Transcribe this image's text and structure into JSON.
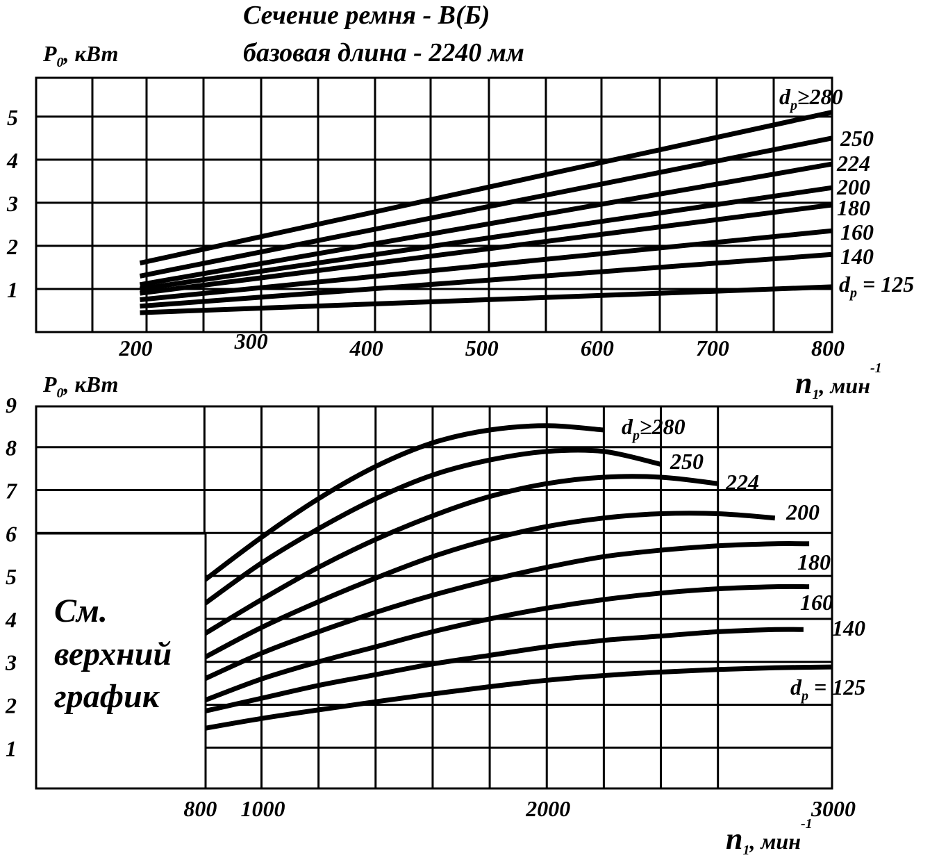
{
  "title": {
    "line1": "Сечение ремня - В(Б)",
    "line2": "базовая длина - 2240 мм"
  },
  "axis_labels": {
    "p_main": "P",
    "p_sub": "0",
    "p_unit": ", кВт",
    "n_main": "n",
    "n_sub": "1",
    "n_unit": ", мин",
    "n_sup": "-1"
  },
  "note": {
    "line1": "См.",
    "line2": "верхний",
    "line3": "график"
  },
  "chart_data": [
    {
      "type": "line",
      "x_ticks": [
        "200",
        "300",
        "400",
        "500",
        "600",
        "700",
        "800"
      ],
      "y_ticks": [
        "1",
        "2",
        "3",
        "4",
        "5"
      ],
      "xlim": [
        110,
        800
      ],
      "ylim": [
        0,
        5.9
      ],
      "grid": true,
      "series": [
        {
          "name": "dp ≥ 280",
          "x": [
            200,
            800
          ],
          "y": [
            1.6,
            5.1
          ],
          "label_main": "d",
          "label_sub": "p",
          "label_rest": "≥280"
        },
        {
          "name": "250",
          "x": [
            200,
            800
          ],
          "y": [
            1.3,
            4.5
          ],
          "label_main": "",
          "label_sub": "",
          "label_rest": "250"
        },
        {
          "name": "224",
          "x": [
            200,
            800
          ],
          "y": [
            1.1,
            3.9
          ],
          "label_main": "",
          "label_sub": "",
          "label_rest": "224"
        },
        {
          "name": "200",
          "x": [
            200,
            800
          ],
          "y": [
            1.0,
            3.35
          ],
          "label_main": "",
          "label_sub": "",
          "label_rest": "200"
        },
        {
          "name": "180",
          "x": [
            200,
            800
          ],
          "y": [
            0.9,
            2.95
          ],
          "label_main": "",
          "label_sub": "",
          "label_rest": "180"
        },
        {
          "name": "160",
          "x": [
            200,
            800
          ],
          "y": [
            0.75,
            2.35
          ],
          "label_main": "",
          "label_sub": "",
          "label_rest": "160"
        },
        {
          "name": "140",
          "x": [
            200,
            800
          ],
          "y": [
            0.6,
            1.8
          ],
          "label_main": "",
          "label_sub": "",
          "label_rest": "140"
        },
        {
          "name": "dp = 125",
          "x": [
            200,
            800
          ],
          "y": [
            0.45,
            1.05
          ],
          "label_main": "d",
          "label_sub": "p",
          "label_rest": " = 125"
        }
      ]
    },
    {
      "type": "line",
      "x_ticks": [
        "800",
        "1000",
        "2000",
        "3000"
      ],
      "y_ticks": [
        "1",
        "2",
        "3",
        "4",
        "5",
        "6",
        "7",
        "8",
        "9"
      ],
      "xlim": [
        210,
        3000
      ],
      "ylim": [
        0.05,
        8.95
      ],
      "grid": true,
      "series": [
        {
          "name": "dp ≥ 280",
          "x": [
            800,
            1000,
            1200,
            1400,
            1600,
            1800,
            2000,
            2200
          ],
          "y": [
            4.9,
            5.9,
            6.8,
            7.55,
            8.1,
            8.4,
            8.5,
            8.4
          ],
          "label_main": "d",
          "label_sub": "p",
          "label_rest": "≥280"
        },
        {
          "name": "250",
          "x": [
            800,
            1000,
            1200,
            1400,
            1600,
            1800,
            2000,
            2200,
            2400
          ],
          "y": [
            4.35,
            5.3,
            6.1,
            6.8,
            7.35,
            7.7,
            7.9,
            7.9,
            7.6
          ],
          "label_main": "",
          "label_sub": "",
          "label_rest": "250"
        },
        {
          "name": "224",
          "x": [
            800,
            1000,
            1200,
            1400,
            1600,
            1800,
            2000,
            2200,
            2400,
            2600
          ],
          "y": [
            3.65,
            4.45,
            5.2,
            5.85,
            6.4,
            6.85,
            7.15,
            7.3,
            7.3,
            7.15
          ],
          "label_main": "",
          "label_sub": "",
          "label_rest": "224"
        },
        {
          "name": "200",
          "x": [
            800,
            1000,
            1200,
            1400,
            1600,
            1800,
            2000,
            2200,
            2400,
            2600,
            2800
          ],
          "y": [
            3.1,
            3.8,
            4.4,
            4.95,
            5.45,
            5.85,
            6.15,
            6.35,
            6.45,
            6.45,
            6.35
          ],
          "label_main": "",
          "label_sub": "",
          "label_rest": "200"
        },
        {
          "name": "180",
          "x": [
            800,
            1000,
            1200,
            1400,
            1600,
            1800,
            2000,
            2200,
            2400,
            2600,
            2800,
            2920
          ],
          "y": [
            2.6,
            3.2,
            3.7,
            4.15,
            4.55,
            4.9,
            5.2,
            5.45,
            5.6,
            5.7,
            5.75,
            5.75
          ],
          "label_main": "",
          "label_sub": "",
          "label_rest": "180"
        },
        {
          "name": "160",
          "x": [
            800,
            1000,
            1200,
            1400,
            1600,
            1800,
            2000,
            2200,
            2400,
            2600,
            2800,
            2920
          ],
          "y": [
            2.1,
            2.6,
            3.0,
            3.35,
            3.7,
            4.0,
            4.25,
            4.45,
            4.6,
            4.7,
            4.75,
            4.75
          ],
          "label_main": "",
          "label_sub": "",
          "label_rest": "160"
        },
        {
          "name": "140",
          "x": [
            800,
            1000,
            1200,
            1400,
            1600,
            1800,
            2000,
            2200,
            2400,
            2600,
            2800,
            2900
          ],
          "y": [
            1.85,
            2.15,
            2.45,
            2.7,
            2.95,
            3.15,
            3.35,
            3.5,
            3.6,
            3.7,
            3.75,
            3.75
          ],
          "label_main": "",
          "label_sub": "",
          "label_rest": "140"
        },
        {
          "name": "dp = 125",
          "x": [
            800,
            1000,
            1200,
            1400,
            1600,
            1800,
            2000,
            2200,
            2400,
            2600,
            2800,
            3000
          ],
          "y": [
            1.45,
            1.68,
            1.88,
            2.07,
            2.25,
            2.42,
            2.57,
            2.68,
            2.76,
            2.82,
            2.86,
            2.88
          ],
          "label_main": "d",
          "label_sub": "p",
          "label_rest": " = 125"
        }
      ]
    }
  ]
}
